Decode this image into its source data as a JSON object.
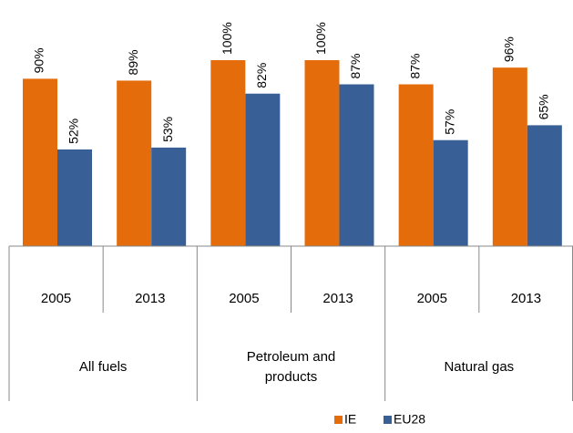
{
  "chart_data": {
    "type": "bar",
    "groups": [
      "All fuels",
      "Petroleum and products",
      "Natural gas"
    ],
    "categories": [
      "2005",
      "2013",
      "2005",
      "2013",
      "2005",
      "2013"
    ],
    "series": [
      {
        "name": "IE",
        "color": "#e46c0a",
        "values": [
          90,
          89,
          100,
          100,
          87,
          96
        ],
        "value_labels": [
          "90%",
          "89%",
          "100%",
          "100%",
          "87%",
          "96%"
        ]
      },
      {
        "name": "EU28",
        "color": "#386097",
        "values": [
          52,
          53,
          82,
          87,
          57,
          65
        ],
        "value_labels": [
          "52%",
          "53%",
          "82%",
          "87%",
          "57%",
          "65%"
        ]
      }
    ],
    "legend": "bottom"
  }
}
